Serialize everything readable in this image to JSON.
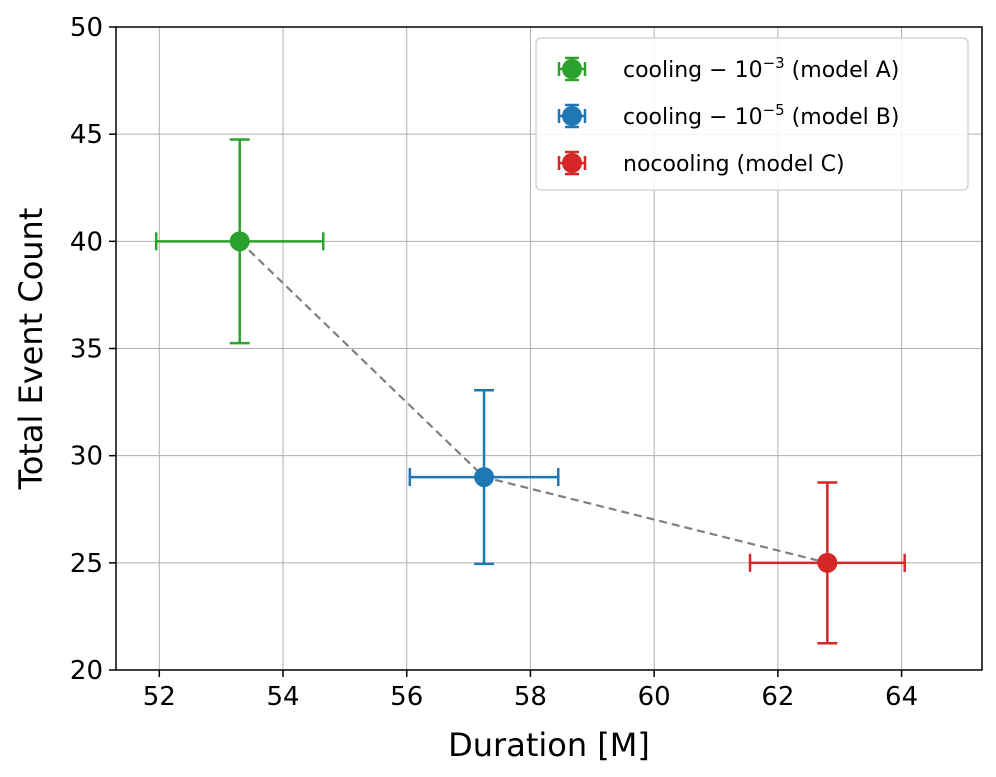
{
  "chart_data": {
    "type": "scatter",
    "title": "",
    "xlabel": "Duration [M]",
    "ylabel": "Total Event Count",
    "xlim": [
      51.3,
      65.3
    ],
    "ylim": [
      20,
      50
    ],
    "xticks": [
      52,
      54,
      56,
      58,
      60,
      62,
      64
    ],
    "yticks": [
      20,
      25,
      30,
      35,
      40,
      45,
      50
    ],
    "grid": true,
    "legend_position": "top-right",
    "connector": {
      "style": "dashed",
      "color": "#808080",
      "points": [
        [
          53.3,
          40
        ],
        [
          57.25,
          29
        ],
        [
          62.8,
          25
        ]
      ]
    },
    "series": [
      {
        "name": "cooling - 10^-3 (model A)",
        "label_base": "cooling − 10",
        "label_exp": "−3",
        "label_suffix": " (model A)",
        "color": "#2ca02c",
        "x": 53.3,
        "y": 40,
        "xerr": 1.35,
        "yerr": 4.75
      },
      {
        "name": "cooling - 10^-5 (model B)",
        "label_base": "cooling − 10",
        "label_exp": "−5",
        "label_suffix": " (model B)",
        "color": "#1f77b4",
        "x": 57.25,
        "y": 29,
        "xerr": 1.2,
        "yerr": 4.05
      },
      {
        "name": "nocooling (model C)",
        "label_base": "nocooling (model C)",
        "label_exp": "",
        "label_suffix": "",
        "color": "#d62728",
        "x": 62.8,
        "y": 25,
        "xerr": 1.25,
        "yerr": 3.75
      }
    ]
  }
}
